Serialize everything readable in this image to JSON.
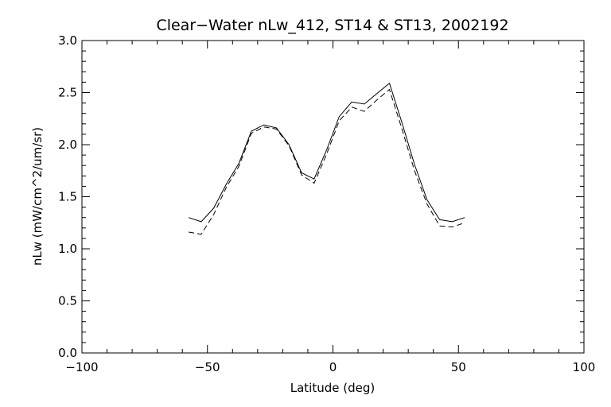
{
  "chart_data": {
    "type": "line",
    "title": "Clear−Water nLw_412, ST14 & ST13, 2002192",
    "xlabel": "Latitude (deg)",
    "ylabel": "nLw (mW/cm^2/um/sr)",
    "xlim": [
      -100,
      100
    ],
    "ylim": [
      0,
      3
    ],
    "x_ticks": [
      -100,
      -50,
      0,
      50,
      100
    ],
    "x_tick_labels": [
      "−100",
      "−50",
      "0",
      "50",
      "100"
    ],
    "y_ticks": [
      0,
      0.5,
      1,
      1.5,
      2,
      2.5,
      3
    ],
    "y_tick_labels": [
      "0.0",
      "0.5",
      "1.0",
      "1.5",
      "2.0",
      "2.5",
      "3.0"
    ],
    "grid": false,
    "series": [
      {
        "style": "solid",
        "x": [
          -57.5,
          -52.5,
          -47.5,
          -42.5,
          -37.5,
          -32.5,
          -27.5,
          -22.5,
          -17.5,
          -12.5,
          -7.5,
          -2.5,
          2.5,
          7.5,
          12.5,
          17.5,
          22.5,
          27.5,
          32.5,
          37.5,
          42.5,
          47.5,
          52.5
        ],
        "values": [
          1.3,
          1.26,
          1.39,
          1.62,
          1.82,
          2.13,
          2.19,
          2.16,
          2.0,
          1.73,
          1.67,
          1.95,
          2.27,
          2.41,
          2.39,
          2.49,
          2.59,
          2.21,
          1.81,
          1.47,
          1.28,
          1.26,
          1.3
        ]
      },
      {
        "style": "dashed",
        "x": [
          -57.5,
          -52.5,
          -47.5,
          -42.5,
          -37.5,
          -32.5,
          -27.5,
          -22.5,
          -17.5,
          -12.5,
          -7.5,
          -2.5,
          2.5,
          7.5,
          12.5,
          17.5,
          22.5,
          27.5,
          32.5,
          37.5,
          42.5,
          47.5,
          52.5
        ],
        "values": [
          1.16,
          1.14,
          1.33,
          1.59,
          1.79,
          2.11,
          2.17,
          2.15,
          1.99,
          1.71,
          1.63,
          1.91,
          2.23,
          2.36,
          2.32,
          2.43,
          2.53,
          2.15,
          1.75,
          1.43,
          1.22,
          1.21,
          1.25
        ]
      }
    ]
  }
}
